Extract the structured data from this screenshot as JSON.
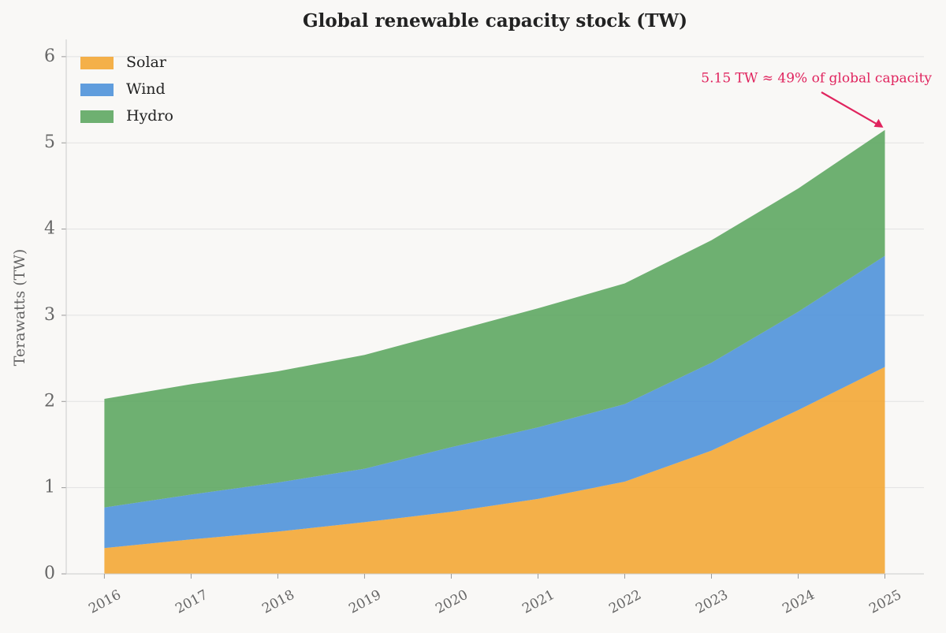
{
  "chart_data": {
    "type": "stacked-area",
    "title": "Global renewable capacity stock (TW)",
    "y_label": "Terawatts (TW)",
    "x": [
      2016,
      2017,
      2018,
      2019,
      2020,
      2021,
      2022,
      2023,
      2024,
      2025
    ],
    "xlim": [
      2015.56,
      2025.45
    ],
    "series": [
      {
        "name": "Solar",
        "color": "#f2a531",
        "values": [
          0.3,
          0.4,
          0.49,
          0.6,
          0.72,
          0.87,
          1.07,
          1.43,
          1.9,
          2.4
        ]
      },
      {
        "name": "Wind",
        "color": "#4a90d9",
        "values": [
          0.47,
          0.52,
          0.57,
          0.62,
          0.75,
          0.83,
          0.9,
          1.02,
          1.14,
          1.29
        ]
      },
      {
        "name": "Hydro",
        "color": "#5aa55e",
        "values": [
          1.26,
          1.28,
          1.29,
          1.32,
          1.34,
          1.38,
          1.4,
          1.42,
          1.43,
          1.46
        ]
      }
    ],
    "ylim": [
      0,
      6.2
    ],
    "yticks": [
      0,
      1,
      2,
      3,
      4,
      5,
      6
    ],
    "grid": true,
    "legend": "upper left",
    "annotation": "5.15 TW ≈ 49% of global capacity",
    "annotation_color": "#e0245e"
  }
}
